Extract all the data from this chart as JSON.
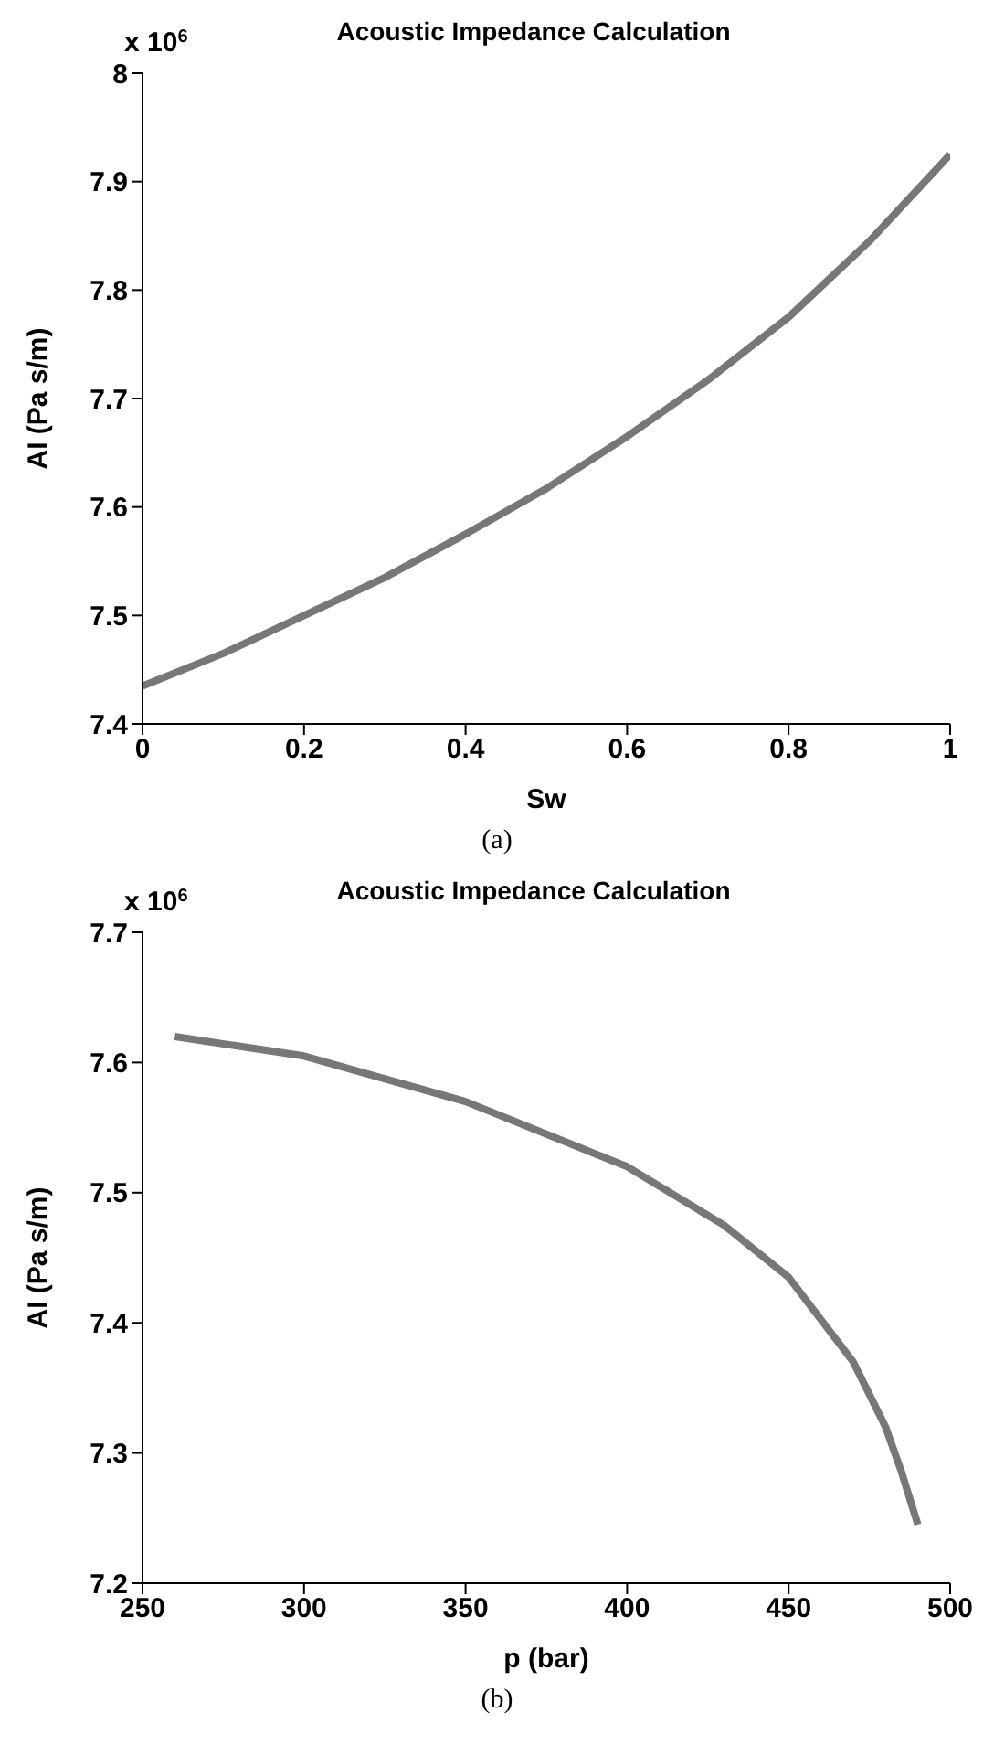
{
  "chart_data": [
    {
      "type": "line",
      "title": "Acoustic Impedance Calculation",
      "xlabel": "Sw",
      "ylabel": "AI (Pa s/m)",
      "annotations": [
        "x 10$^{6}$",
        "(a)"
      ],
      "x": [
        0,
        0.1,
        0.2,
        0.3,
        0.4,
        0.5,
        0.6,
        0.7,
        0.8,
        0.9,
        1
      ],
      "series": [
        {
          "color": "#777777",
          "values": [
            7.435,
            7.465,
            7.5,
            7.535,
            7.575,
            7.617,
            7.665,
            7.717,
            7.775,
            7.845,
            7.925
          ]
        }
      ],
      "xlim": [
        0,
        1
      ],
      "xticks": [
        0,
        0.2,
        0.4,
        0.6,
        0.8,
        1
      ],
      "ylim": [
        7.4,
        8
      ],
      "yticks": [
        7.4,
        7.5,
        7.6,
        7.7,
        7.8,
        7.9,
        8
      ],
      "grid": false,
      "legend": false
    },
    {
      "type": "line",
      "title": "Acoustic Impedance Calculation",
      "xlabel": "p (bar)",
      "ylabel": "AI (Pa s/m)",
      "annotations": [
        "x 10$^{6}$",
        "(b)"
      ],
      "x": [
        260,
        300,
        350,
        400,
        430,
        450,
        470,
        480,
        485,
        490
      ],
      "series": [
        {
          "color": "#777777",
          "values": [
            7.62,
            7.605,
            7.57,
            7.52,
            7.475,
            7.435,
            7.37,
            7.32,
            7.285,
            7.245
          ]
        }
      ],
      "xlim": [
        250,
        500
      ],
      "xticks": [
        250,
        300,
        350,
        400,
        450,
        500
      ],
      "ylim": [
        7.2,
        7.7
      ],
      "yticks": [
        7.2,
        7.3,
        7.4,
        7.5,
        7.6,
        7.7
      ],
      "grid": false,
      "legend": false
    }
  ]
}
